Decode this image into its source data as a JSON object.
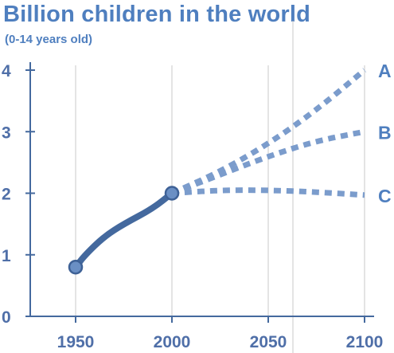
{
  "chart_data": {
    "type": "line",
    "title": "Billion children in the world",
    "subtitle": "(0-14 years old)",
    "xlim": [
      1950,
      2100
    ],
    "ylim": [
      0,
      4
    ],
    "x_ticks": [
      "1950",
      "2000",
      "2050",
      "2100"
    ],
    "y_ticks": [
      "0",
      "1",
      "2",
      "3",
      "4"
    ],
    "grid": "vertical lines only",
    "colors": {
      "historical": "#44699e",
      "projection": "#7b9ccc",
      "label": "#4f7fbf",
      "grid": "#c8c8c8"
    },
    "series": [
      {
        "name": "",
        "style": "solid",
        "x": [
          1950,
          1955,
          1965,
          1975,
          1990,
          2000
        ],
        "y": [
          0.8,
          1.0,
          1.3,
          1.5,
          1.75,
          2.0
        ]
      },
      {
        "name": "A",
        "style": "dotted",
        "x": [
          2000,
          2025,
          2050,
          2075,
          2100
        ],
        "y": [
          2.0,
          2.35,
          2.8,
          3.35,
          4.0
        ]
      },
      {
        "name": "B",
        "style": "dotted",
        "x": [
          2000,
          2025,
          2050,
          2075,
          2100
        ],
        "y": [
          2.0,
          2.3,
          2.6,
          2.85,
          3.0
        ]
      },
      {
        "name": "C",
        "style": "dotted",
        "x": [
          2000,
          2025,
          2050,
          2075,
          2100
        ],
        "y": [
          2.0,
          2.05,
          2.05,
          2.02,
          1.97
        ]
      }
    ],
    "markers": [
      {
        "x": 1950,
        "y": 0.8
      },
      {
        "x": 2000,
        "y": 2.0
      }
    ]
  }
}
